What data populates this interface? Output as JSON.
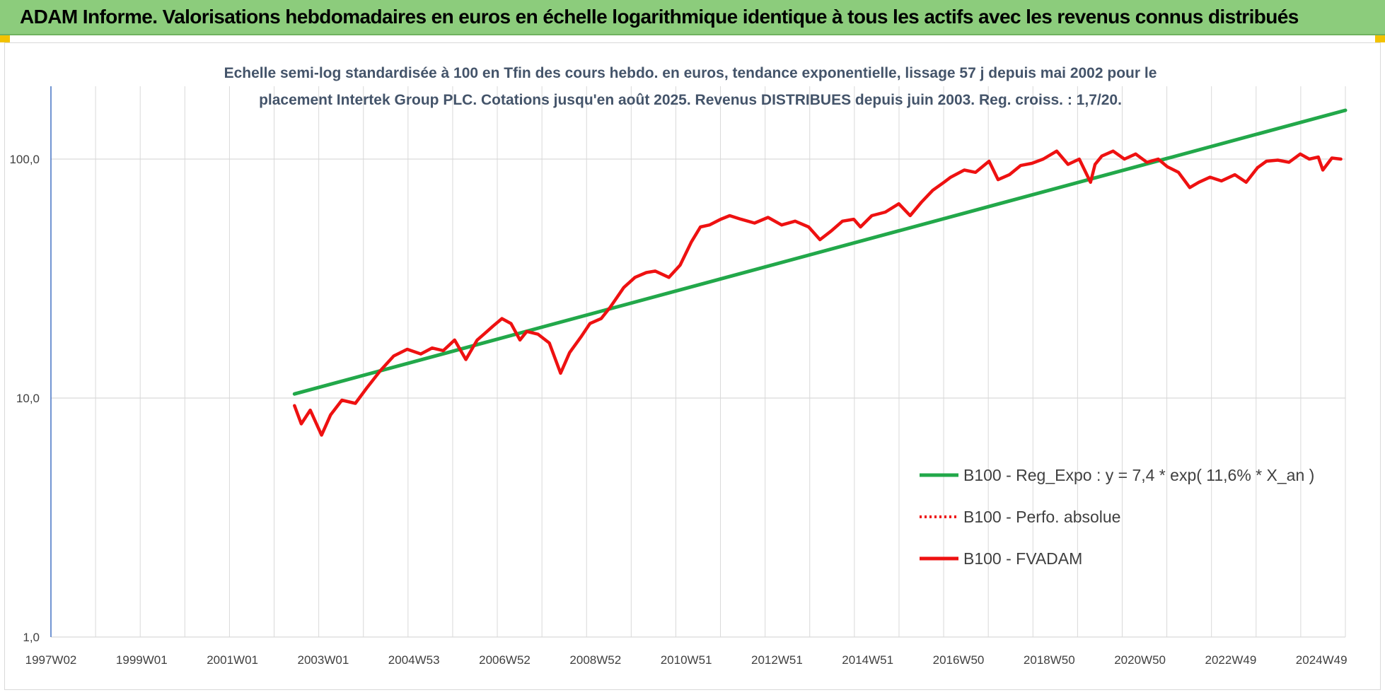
{
  "banner": {
    "title": "ADAM Informe. Valorisations hebdomadaires en euros en échelle logarithmique identique à tous les actifs avec les revenus connus distribués"
  },
  "colors": {
    "banner_bg": "#8ccc7c",
    "regression": "#22a84a",
    "fvadam": "#ee1111",
    "perfo": "#ee1111",
    "grid": "#d9d9d9",
    "axis": "#4472c4"
  },
  "chart_data": {
    "type": "line",
    "title_lines": [
      "Echelle semi-log standardisée à 100 en Tfin des cours hebdo. en euros, tendance exponentielle, lissage 57 j depuis mai 2002 pour le",
      "placement Intertek Group PLC. Cotations jusqu'en août 2025. Revenus DISTRIBUES depuis juin 2003. Reg. croiss. : 1,7/20."
    ],
    "y_scale": "log",
    "ylim": [
      1,
      200
    ],
    "y_ticks": [
      "1,0",
      "10,0",
      "100,0"
    ],
    "x_range": [
      1997.0,
      2025.7
    ],
    "x_ticks": [
      "1997W02",
      "1999W01",
      "2001W01",
      "2003W01",
      "2004W53",
      "2006W52",
      "2008W52",
      "2010W51",
      "2012W51",
      "2014W51",
      "2016W50",
      "2018W50",
      "2020W50",
      "2022W49",
      "2024W49"
    ],
    "grid": true,
    "legend_position": "bottom-right",
    "legend": [
      {
        "key": "regression",
        "label": "B100 - Reg_Expo : y = 7,4 * exp( 11,6% *  X_an )",
        "style": "solid"
      },
      {
        "key": "perfo",
        "label": "B100 - Perfo. absolue",
        "style": "dotted"
      },
      {
        "key": "fvadam",
        "label": "B100 - FVADAM",
        "style": "solid"
      }
    ],
    "series": [
      {
        "key": "regression",
        "name": "B100 - Reg_Expo : y = 7,4 * exp( 11,6% *  X_an )",
        "x": [
          2002.4,
          2025.7
        ],
        "y": [
          10.4,
          160
        ]
      },
      {
        "key": "fvadam",
        "name": "B100 - FVADAM",
        "x": [
          2002.4,
          2002.55,
          2002.75,
          2003.0,
          2003.2,
          2003.45,
          2003.75,
          2004.0,
          2004.3,
          2004.6,
          2004.9,
          2005.2,
          2005.45,
          2005.7,
          2005.95,
          2006.2,
          2006.45,
          2006.6,
          2006.8,
          2007.0,
          2007.2,
          2007.4,
          2007.55,
          2007.8,
          2008.05,
          2008.3,
          2008.5,
          2008.75,
          2008.95,
          2009.2,
          2009.4,
          2009.7,
          2009.95,
          2010.2,
          2010.4,
          2010.7,
          2010.95,
          2011.2,
          2011.4,
          2011.6,
          2011.85,
          2012.05,
          2012.3,
          2012.6,
          2012.9,
          2013.2,
          2013.5,
          2013.8,
          2014.05,
          2014.3,
          2014.55,
          2014.8,
          2014.95,
          2015.2,
          2015.5,
          2015.8,
          2016.05,
          2016.3,
          2016.55,
          2016.8,
          2016.95,
          2017.25,
          2017.5,
          2017.8,
          2018.0,
          2018.25,
          2018.5,
          2018.75,
          2019.0,
          2019.3,
          2019.55,
          2019.8,
          2020.05,
          2020.15,
          2020.3,
          2020.55,
          2020.8,
          2021.05,
          2021.3,
          2021.55,
          2021.75,
          2022.0,
          2022.25,
          2022.45,
          2022.7,
          2022.95,
          2023.25,
          2023.5,
          2023.75,
          2023.95,
          2024.2,
          2024.45,
          2024.7,
          2024.9,
          2025.1,
          2025.2,
          2025.4,
          2025.6
        ],
        "y": [
          9.3,
          7.8,
          8.9,
          7.0,
          8.5,
          9.8,
          9.5,
          11.0,
          13.0,
          15.0,
          16.0,
          15.3,
          16.2,
          15.8,
          17.5,
          14.5,
          17.5,
          18.5,
          20.0,
          21.5,
          20.5,
          17.5,
          19.0,
          18.5,
          17.0,
          12.7,
          15.5,
          18.0,
          20.5,
          21.5,
          24.0,
          29.0,
          32.0,
          33.5,
          34.0,
          32.0,
          36.0,
          45.0,
          52.0,
          53.0,
          56.0,
          58.0,
          56.0,
          54.0,
          57.0,
          53.0,
          55.0,
          52.0,
          46.0,
          50.0,
          55.0,
          56.0,
          52.0,
          58.0,
          60.0,
          65.0,
          58.0,
          66.0,
          74.0,
          80.0,
          84.0,
          90.0,
          88.0,
          98.0,
          82.0,
          86.0,
          94.0,
          96.0,
          100.0,
          108.0,
          95.0,
          100.0,
          80.0,
          95.0,
          103.0,
          108.0,
          100.0,
          105.0,
          97.0,
          100.0,
          93.0,
          88.0,
          76.0,
          80.0,
          84.0,
          81.0,
          86.0,
          80.0,
          92.0,
          98.0,
          99.0,
          97.0,
          105.0,
          100.0,
          102.0,
          90.0,
          101.0,
          100.0
        ]
      },
      {
        "key": "perfo",
        "name": "B100 - Perfo. absolue",
        "x": [
          2002.4,
          2002.55,
          2002.75,
          2003.0,
          2003.2,
          2003.45,
          2003.75,
          2004.0,
          2004.3,
          2004.6,
          2004.9,
          2005.2,
          2005.45,
          2005.7,
          2005.95,
          2006.2,
          2006.45,
          2006.6,
          2006.8,
          2007.0,
          2007.2,
          2007.4,
          2007.55,
          2007.8,
          2008.05,
          2008.3,
          2008.5,
          2008.75,
          2008.95,
          2009.2,
          2009.4,
          2009.7,
          2009.95,
          2010.2,
          2010.4,
          2010.7,
          2010.95,
          2011.2,
          2011.4,
          2011.6,
          2011.85,
          2012.05,
          2012.3,
          2012.6,
          2012.9,
          2013.2,
          2013.5,
          2013.8,
          2014.05,
          2014.3,
          2014.55,
          2014.8,
          2014.95,
          2015.2,
          2015.5,
          2015.8,
          2016.05,
          2016.3,
          2016.55,
          2016.8,
          2016.95,
          2017.25,
          2017.5,
          2017.8,
          2018.0,
          2018.25,
          2018.5,
          2018.75,
          2019.0,
          2019.3,
          2019.55,
          2019.8,
          2020.05,
          2020.15,
          2020.3,
          2020.55,
          2020.8,
          2021.05,
          2021.3,
          2021.55,
          2021.75,
          2022.0,
          2022.25,
          2022.45,
          2022.7,
          2022.95,
          2023.25,
          2023.5,
          2023.75,
          2023.95,
          2024.2,
          2024.45,
          2024.7,
          2024.9,
          2025.1,
          2025.2,
          2025.4,
          2025.6
        ],
        "y": [
          9.3,
          7.8,
          8.9,
          7.0,
          8.5,
          9.8,
          9.5,
          11.0,
          13.0,
          15.0,
          16.0,
          15.3,
          16.2,
          15.8,
          17.5,
          14.5,
          17.5,
          18.5,
          20.0,
          21.5,
          20.5,
          17.5,
          19.0,
          18.5,
          17.0,
          12.7,
          15.5,
          18.0,
          20.5,
          21.5,
          24.0,
          29.0,
          32.0,
          33.5,
          34.0,
          32.0,
          36.0,
          45.0,
          52.0,
          53.0,
          56.0,
          58.0,
          56.0,
          54.0,
          57.0,
          53.0,
          55.0,
          52.0,
          46.0,
          50.0,
          55.0,
          56.0,
          52.0,
          58.0,
          60.0,
          65.0,
          58.0,
          66.0,
          74.0,
          80.0,
          84.0,
          90.0,
          88.0,
          98.0,
          82.0,
          86.0,
          94.0,
          96.0,
          100.0,
          108.0,
          95.0,
          100.0,
          80.0,
          95.0,
          103.0,
          108.0,
          100.0,
          105.0,
          97.0,
          100.0,
          93.0,
          88.0,
          76.0,
          80.0,
          84.0,
          81.0,
          86.0,
          80.0,
          92.0,
          98.0,
          99.0,
          97.0,
          105.0,
          100.0,
          102.0,
          90.0,
          101.0,
          100.0
        ]
      }
    ]
  }
}
